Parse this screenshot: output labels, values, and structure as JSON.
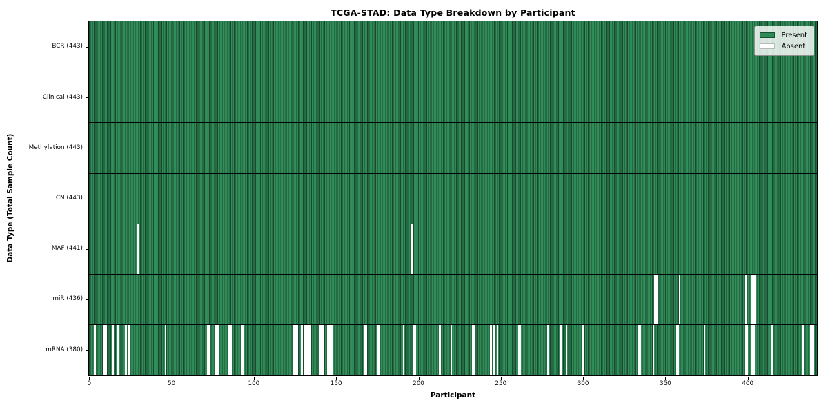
{
  "title": "TCGA-STAD: Data Type Breakdown by Participant",
  "x_axis": {
    "label": "Participant",
    "ticks": [
      0,
      50,
      100,
      150,
      200,
      250,
      300,
      350,
      400
    ]
  },
  "y_axis": {
    "label": "Data Type (Total Sample Count)"
  },
  "legend": {
    "items": [
      {
        "label": "Present",
        "color": "#2e8b57"
      },
      {
        "label": "Absent",
        "color": "#ffffff"
      }
    ]
  },
  "chart_data": {
    "type": "heatmap",
    "title": "TCGA-STAD: Data Type Breakdown by Participant",
    "xlabel": "Participant",
    "ylabel": "Data Type (Total Sample Count)",
    "n_participants": 443,
    "xlim": [
      0,
      443
    ],
    "x_ticks": [
      0,
      50,
      100,
      150,
      200,
      250,
      300,
      350,
      400
    ],
    "legend": [
      "Present",
      "Absent"
    ],
    "legend_position": "upper right",
    "grid": false,
    "colors": {
      "present": "#2e8b57",
      "absent": "#ffffff",
      "row_separator": "#000000"
    },
    "rows": [
      {
        "name": "BCR",
        "label": "BCR (443)",
        "present_count": 443,
        "absent_participants": []
      },
      {
        "name": "Clinical",
        "label": "Clinical (443)",
        "present_count": 443,
        "absent_participants": []
      },
      {
        "name": "Methylation",
        "label": "Methylation (443)",
        "present_count": 443,
        "absent_participants": []
      },
      {
        "name": "CN",
        "label": "CN (443)",
        "present_count": 443,
        "absent_participants": []
      },
      {
        "name": "MAF",
        "label": "MAF (441)",
        "present_count": 441,
        "absent_participants": [
          29,
          196
        ]
      },
      {
        "name": "miR",
        "label": "miR (436)",
        "present_count": 436,
        "absent_participants": [
          344,
          345,
          359,
          399,
          403,
          404,
          405
        ]
      },
      {
        "name": "mRNA",
        "label": "mRNA (380)",
        "present_count": 380,
        "absent_participants": [
          3,
          9,
          10,
          14,
          17,
          22,
          24,
          46,
          72,
          73,
          77,
          78,
          85,
          86,
          93,
          124,
          125,
          126,
          129,
          131,
          132,
          133,
          134,
          140,
          141,
          142,
          145,
          146,
          147,
          167,
          168,
          175,
          176,
          191,
          197,
          198,
          213,
          220,
          233,
          234,
          244,
          246,
          248,
          261,
          262,
          279,
          287,
          290,
          300,
          334,
          335,
          343,
          357,
          358,
          374,
          399,
          400,
          403,
          404,
          415,
          434,
          439,
          440
        ]
      }
    ]
  }
}
